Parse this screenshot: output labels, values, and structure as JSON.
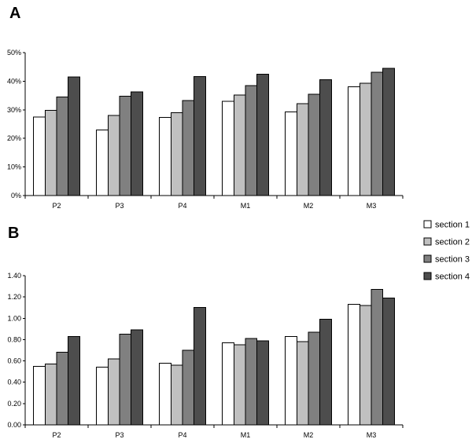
{
  "legend": {
    "entries": [
      {
        "label": "section 1",
        "color": "#ffffff"
      },
      {
        "label": "section 2",
        "color": "#c0c0c0"
      },
      {
        "label": "section 3",
        "color": "#808080"
      },
      {
        "label": "section 4",
        "color": "#4d4d4d"
      }
    ]
  },
  "chart_data": [
    {
      "panel": "A",
      "type": "bar",
      "categories": [
        "P2",
        "P3",
        "P4",
        "M1",
        "M2",
        "M3"
      ],
      "ylim": [
        0,
        50
      ],
      "yticks": [
        "0%",
        "10%",
        "20%",
        "30%",
        "40%",
        "50%"
      ],
      "ytick_values": [
        0,
        10,
        20,
        30,
        40,
        50
      ],
      "series": [
        {
          "name": "section 1",
          "values": [
            27.5,
            23.0,
            27.3,
            33.0,
            29.3,
            38.0
          ]
        },
        {
          "name": "section 2",
          "values": [
            29.8,
            28.0,
            29.0,
            35.2,
            32.2,
            39.3
          ]
        },
        {
          "name": "section 3",
          "values": [
            34.5,
            34.8,
            33.2,
            38.5,
            35.5,
            43.2
          ]
        },
        {
          "name": "section 4",
          "values": [
            41.5,
            36.3,
            41.6,
            42.4,
            40.5,
            44.5
          ]
        }
      ]
    },
    {
      "panel": "B",
      "type": "bar",
      "categories": [
        "P2",
        "P3",
        "P4",
        "M1",
        "M2",
        "M3"
      ],
      "ylim": [
        0,
        1.4
      ],
      "yticks": [
        "0.00",
        "0.20",
        "0.40",
        "0.60",
        "0.80",
        "1.00",
        "1.20",
        "1.40"
      ],
      "ytick_values": [
        0,
        0.2,
        0.4,
        0.6,
        0.8,
        1.0,
        1.2,
        1.4
      ],
      "series": [
        {
          "name": "section 1",
          "values": [
            0.55,
            0.54,
            0.58,
            0.77,
            0.83,
            1.13
          ]
        },
        {
          "name": "section 2",
          "values": [
            0.57,
            0.62,
            0.56,
            0.75,
            0.78,
            1.12
          ]
        },
        {
          "name": "section 3",
          "values": [
            0.68,
            0.85,
            0.7,
            0.81,
            0.87,
            1.27
          ]
        },
        {
          "name": "section 4",
          "values": [
            0.83,
            0.89,
            1.1,
            0.79,
            0.99,
            1.19
          ]
        }
      ]
    }
  ]
}
